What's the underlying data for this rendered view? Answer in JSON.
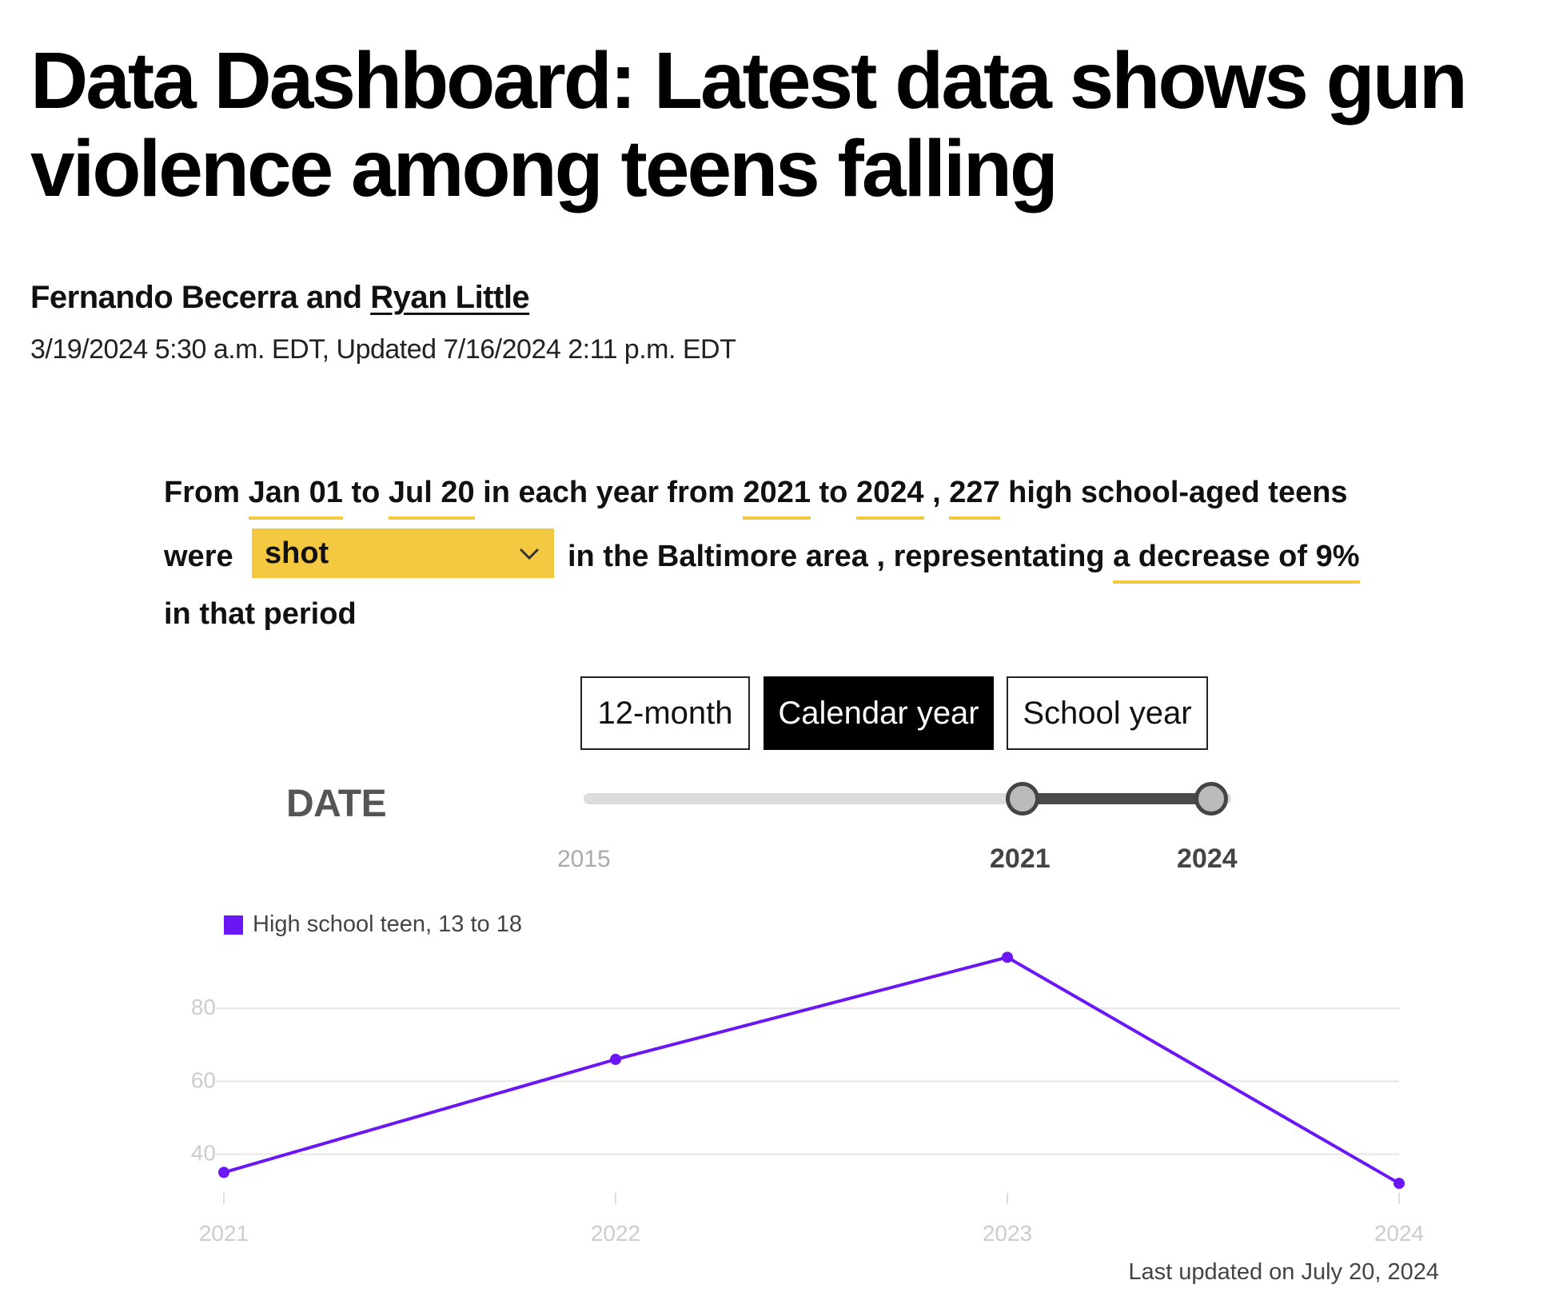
{
  "article": {
    "headline": "Data Dashboard: Latest data shows gun violence among teens falling",
    "byline_prefix": "Fernando Becerra and",
    "byline_author_link": "Ryan Little",
    "dateline": "3/19/2024 5:30 a.m. EDT, Updated 7/16/2024 2:11 p.m. EDT"
  },
  "summary": {
    "from": "From",
    "start_date": "Jan 01",
    "to1": "to",
    "end_date": "Jul 20",
    "in_each_year_from": "in each year from",
    "start_year": "2021",
    "to2": "to",
    "end_year": "2024",
    "comma": ",",
    "count": "227",
    "tail1": "high school-aged teens",
    "were": "were",
    "outcome_selected": "shot",
    "in_area": "in the Baltimore area , representating",
    "change": "a decrease of 9%",
    "tail2": "in that period"
  },
  "period_toggle": {
    "options": [
      "12-month",
      "Calendar year",
      "School year"
    ],
    "active": "Calendar year"
  },
  "date_filter": {
    "label": "DATE",
    "min_label": "2015",
    "selected_start": "2021",
    "selected_end": "2024",
    "min": 2015,
    "max": 2024,
    "start": 2021,
    "end": 2024
  },
  "colors": {
    "accent": "#f5c842",
    "series": "#6b16f5",
    "toggle_active": "#000000"
  },
  "icons": {
    "select_chevron": "chevron-down-icon"
  },
  "chart_data": {
    "type": "line",
    "x": [
      "2021",
      "2022",
      "2023",
      "2024"
    ],
    "series": [
      {
        "name": "High school teen, 13 to 18",
        "values": [
          35,
          66,
          94,
          32
        ]
      }
    ],
    "yticks": [
      40,
      60,
      80
    ],
    "ylim": [
      25,
      100
    ],
    "grid": true,
    "legend": "top-left"
  },
  "footer": {
    "updated": "Last updated on July 20, 2024"
  }
}
